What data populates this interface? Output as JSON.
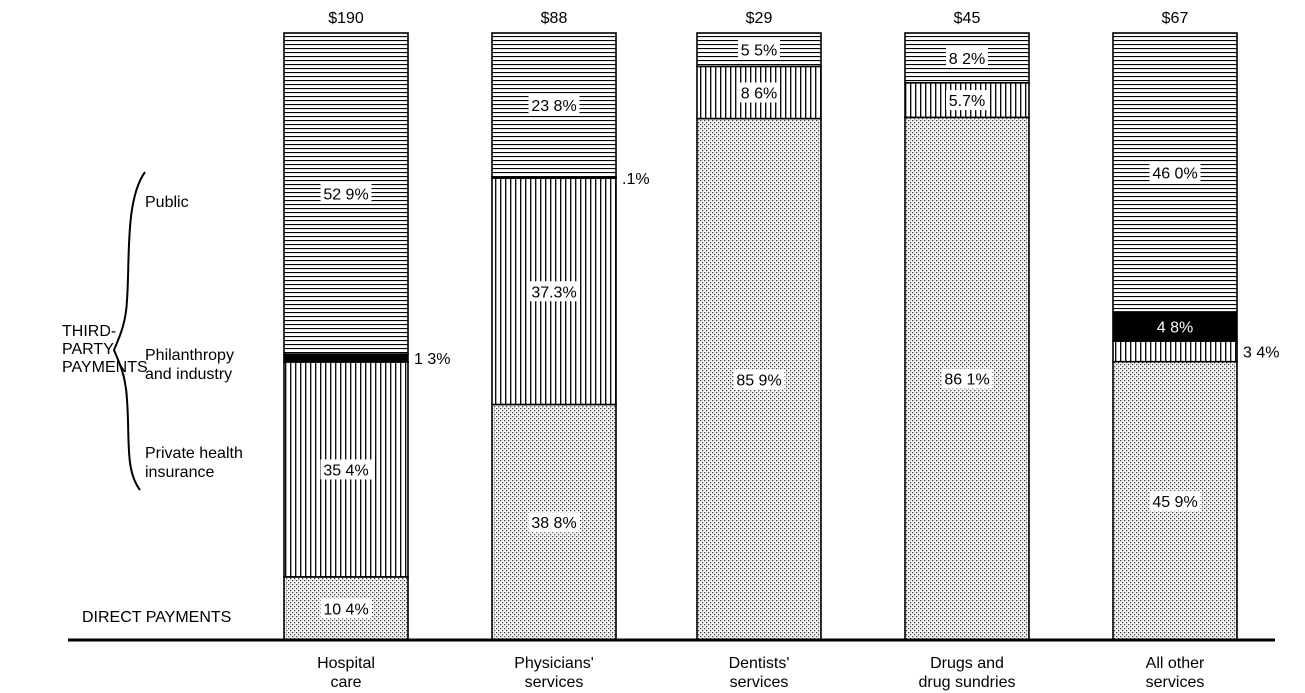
{
  "chart_data": {
    "type": "bar",
    "stacked": true,
    "normalized": true,
    "categories": [
      [
        "Hospital",
        "care"
      ],
      [
        "Physicians'",
        "services"
      ],
      [
        "Dentists'",
        "services"
      ],
      [
        "Drugs and",
        "drug sundries"
      ],
      [
        "All other",
        "services"
      ]
    ],
    "totals": [
      "$190",
      "$88",
      "$29",
      "$45",
      "$67"
    ],
    "series": [
      {
        "key": "direct",
        "pattern": "dots",
        "values": [
          10.4,
          38.8,
          85.9,
          86.1,
          45.9
        ],
        "labels": [
          "10 4%",
          "38 8%",
          "85 9%",
          "86 1%",
          "45 9%"
        ]
      },
      {
        "key": "private",
        "pattern": "vertical",
        "values": [
          35.4,
          37.3,
          8.6,
          5.7,
          3.4
        ],
        "labels": [
          "35 4%",
          "37.3%",
          "8 6%",
          "5.7%",
          "3 4%"
        ]
      },
      {
        "key": "philanthropy",
        "pattern": "black",
        "values": [
          1.3,
          0.1,
          0,
          0,
          4.8
        ],
        "labels": [
          "1 3%",
          ".1%",
          "",
          "",
          "4 8%"
        ]
      },
      {
        "key": "public",
        "pattern": "horizontal",
        "values": [
          52.9,
          23.8,
          5.5,
          8.2,
          46.0
        ],
        "labels": [
          "52 9%",
          "23 8%",
          "5 5%",
          "8 2%",
          "46 0%"
        ]
      }
    ],
    "legend": {
      "group_label": [
        "THIRD-",
        "PARTY",
        "PAYMENTS"
      ],
      "public": [
        "Public"
      ],
      "philanthropy": [
        "Philanthropy",
        "and industry"
      ],
      "private": [
        "Private health",
        "insurance"
      ],
      "direct": [
        "DIRECT PAYMENTS"
      ]
    }
  }
}
